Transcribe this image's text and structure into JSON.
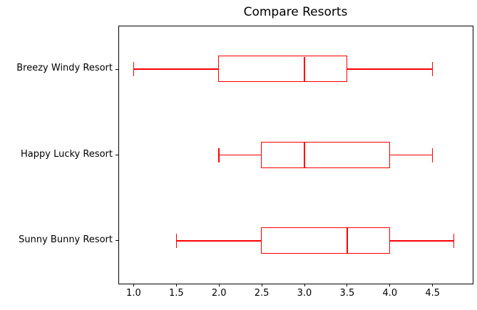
{
  "chart_data": {
    "type": "boxplot",
    "orientation": "horizontal",
    "title": "Compare Resorts",
    "series": [
      {
        "label": "Breezy Windy Resort",
        "whislo": 1.0,
        "q1": 2.0,
        "med": 3.0,
        "q3": 3.5,
        "whishi": 4.5
      },
      {
        "label": "Happy Lucky Resort",
        "whislo": 2.0,
        "q1": 2.5,
        "med": 3.0,
        "q3": 4.0,
        "whishi": 4.5
      },
      {
        "label": "Sunny Bunny Resort",
        "whislo": 1.5,
        "q1": 2.5,
        "med": 3.5,
        "q3": 4.0,
        "whishi": 4.75
      }
    ],
    "x_ticks": [
      {
        "value": 1.0,
        "label": "1.0"
      },
      {
        "value": 1.5,
        "label": "1.5"
      },
      {
        "value": 2.0,
        "label": "2.0"
      },
      {
        "value": 2.5,
        "label": "2.5"
      },
      {
        "value": 3.0,
        "label": "3.0"
      },
      {
        "value": 3.5,
        "label": "3.5"
      },
      {
        "value": 4.0,
        "label": "4.0"
      },
      {
        "value": 4.5,
        "label": "4.5"
      }
    ],
    "xlim": [
      0.83,
      4.97
    ],
    "ylim": [
      0.5,
      3.5
    ],
    "positions": [
      3,
      2,
      1
    ],
    "grid": false,
    "legend": false,
    "colors": {
      "box": "#ff0000",
      "axis": "#000000",
      "text": "#000000",
      "background": "#ffffff"
    }
  }
}
